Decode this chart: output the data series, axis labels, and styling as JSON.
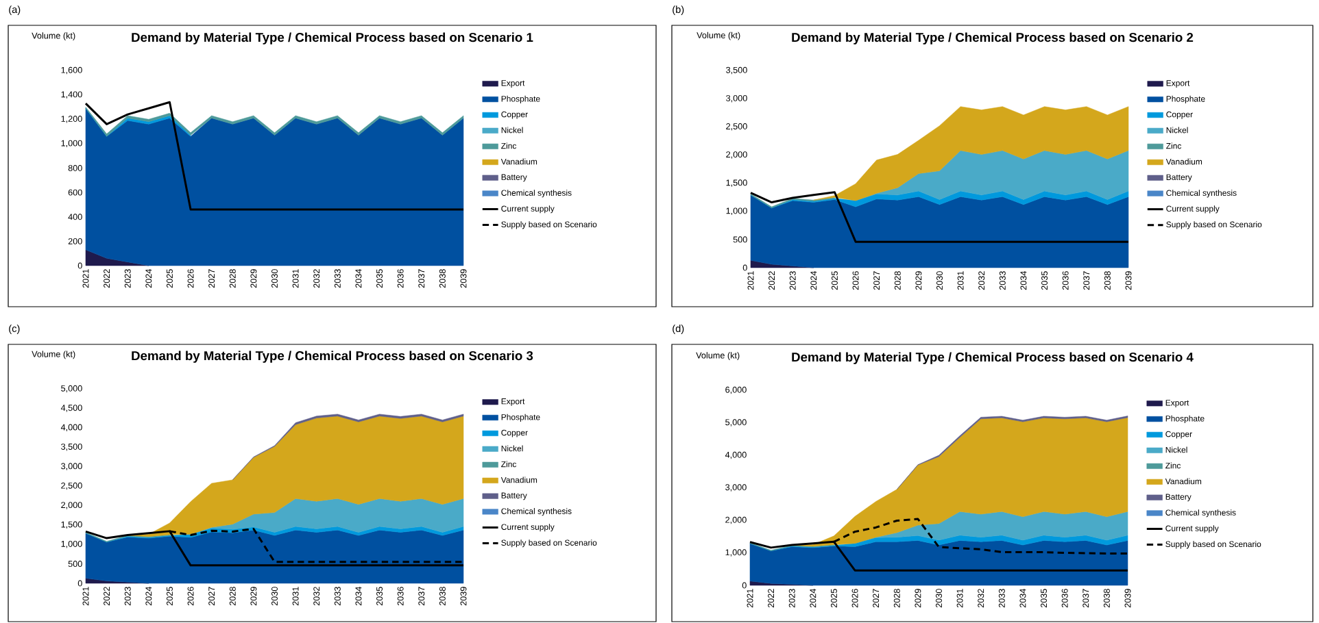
{
  "chart_data": [
    {
      "type": "area",
      "stacked": true,
      "title": "Demand by Material Type / Chemical Process based on Scenario 1",
      "ylabel": "Volume (kt)",
      "annotations": [
        "(a)"
      ],
      "legend": "right",
      "categories": [
        "2021",
        "2022",
        "2023",
        "2024",
        "2025",
        "2026",
        "2027",
        "2028",
        "2029",
        "2030",
        "2031",
        "2032",
        "2033",
        "2034",
        "2035",
        "2036",
        "2037",
        "2038",
        "2039"
      ],
      "ylim": [
        0,
        1600
      ],
      "yticks": [
        0,
        200,
        400,
        600,
        800,
        {
          "value": 1000,
          "label": "1,000"
        },
        {
          "value": 1200,
          "label": "1,200"
        },
        {
          "value": 1400,
          "label": "1,400"
        },
        {
          "value": 1600,
          "label": "1,600"
        }
      ],
      "series": [
        {
          "name": "Export",
          "color": "#1f1a4d",
          "values": [
            130,
            60,
            30,
            0,
            null,
            null,
            null,
            null,
            null,
            null,
            null,
            null,
            null,
            null,
            null,
            null,
            null,
            null,
            null
          ]
        },
        {
          "name": "Phosphate",
          "color": "#0050a0",
          "values": [
            1160,
            1000,
            1160,
            1160,
            1210,
            1060,
            1210,
            1160,
            1210,
            1070,
            1210,
            1160,
            1210,
            1070,
            1210,
            1160,
            1210,
            1070,
            1210
          ]
        },
        {
          "name": "Copper",
          "color": "#0099dd",
          "values": [
            0,
            0,
            20,
            20,
            20,
            10,
            null,
            null,
            null,
            null,
            null,
            null,
            null,
            null,
            null,
            null,
            null,
            null,
            null
          ]
        },
        {
          "name": "Nickel",
          "color": "#4aaac8",
          "values": [
            null,
            null,
            null,
            null,
            null,
            null,
            null,
            null,
            null,
            null,
            null,
            null,
            null,
            null,
            null,
            null,
            null,
            null,
            null
          ]
        },
        {
          "name": "Zinc",
          "color": "#4e9a9a",
          "values": [
            10,
            20,
            20,
            20,
            20,
            20,
            20,
            20,
            20,
            20,
            20,
            20,
            20,
            20,
            20,
            20,
            20,
            20,
            20
          ]
        },
        {
          "name": "Vanadium",
          "color": "#d4a71c",
          "values": [
            null,
            null,
            null,
            null,
            null,
            null,
            null,
            null,
            null,
            null,
            null,
            null,
            null,
            null,
            null,
            null,
            null,
            null,
            null
          ]
        },
        {
          "name": "Battery",
          "color": "#5f5f8a",
          "values": [
            null,
            null,
            null,
            null,
            null,
            null,
            null,
            null,
            null,
            null,
            null,
            null,
            null,
            null,
            null,
            null,
            null,
            null,
            null
          ]
        },
        {
          "name": "Chemical synthesis",
          "color": "#4a86c8",
          "values": [
            null,
            null,
            null,
            null,
            null,
            null,
            null,
            null,
            null,
            null,
            null,
            null,
            null,
            null,
            null,
            null,
            null,
            null,
            null
          ]
        },
        {
          "name": "Current supply",
          "type": "line",
          "line_style": "solid",
          "color": "#000000",
          "values": [
            1330,
            1160,
            1240,
            1290,
            1340,
            460,
            460,
            460,
            460,
            460,
            460,
            460,
            460,
            460,
            460,
            460,
            460,
            460,
            460
          ]
        },
        {
          "name": "Supply based on Scenario",
          "type": "line",
          "line_style": "dashed",
          "color": "#000000",
          "values": [
            null,
            null,
            null,
            null,
            null,
            null,
            null,
            null,
            null,
            null,
            null,
            null,
            null,
            null,
            null,
            null,
            null,
            null,
            null
          ]
        }
      ]
    },
    {
      "type": "area",
      "stacked": true,
      "title": "Demand by Material Type / Chemical Process based on Scenario 2",
      "ylabel": "Volume (kt)",
      "annotations": [
        "(b)"
      ],
      "legend": "right",
      "categories": [
        "2021",
        "2022",
        "2023",
        "2024",
        "2025",
        "2026",
        "2027",
        "2028",
        "2029",
        "2030",
        "2031",
        "2032",
        "2033",
        "2034",
        "2035",
        "2036",
        "2037",
        "2038",
        "2039"
      ],
      "ylim": [
        0,
        3500
      ],
      "yticks": [
        0,
        500,
        {
          "value": 1000,
          "label": "1,000"
        },
        {
          "value": 1500,
          "label": "1,500"
        },
        {
          "value": 2000,
          "label": "2,000"
        },
        {
          "value": 2500,
          "label": "2,500"
        },
        {
          "value": 3000,
          "label": "3,000"
        },
        {
          "value": 3500,
          "label": "3,500"
        }
      ],
      "series": [
        {
          "name": "Export",
          "color": "#1f1a4d",
          "values": [
            130,
            60,
            30,
            0,
            null,
            null,
            null,
            null,
            null,
            null,
            null,
            null,
            null,
            null,
            null,
            null,
            null,
            null,
            null
          ]
        },
        {
          "name": "Phosphate",
          "color": "#0050a0",
          "values": [
            1160,
            1000,
            1160,
            1160,
            1210,
            1080,
            1220,
            1200,
            1260,
            1120,
            1260,
            1200,
            1260,
            1120,
            1260,
            1200,
            1260,
            1120,
            1260
          ]
        },
        {
          "name": "Copper",
          "color": "#0099dd",
          "values": [
            0,
            0,
            20,
            20,
            20,
            110,
            90,
            90,
            100,
            90,
            100,
            90,
            100,
            90,
            100,
            90,
            100,
            90,
            100
          ]
        },
        {
          "name": "Nickel",
          "color": "#4aaac8",
          "values": [
            null,
            null,
            null,
            null,
            null,
            0,
            10,
            130,
            310,
            510,
            720,
            720,
            720,
            720,
            720,
            720,
            720,
            720,
            720
          ]
        },
        {
          "name": "Zinc",
          "color": "#4e9a9a",
          "values": [
            20,
            20,
            20,
            20,
            20,
            null,
            null,
            null,
            null,
            null,
            null,
            null,
            null,
            null,
            null,
            null,
            null,
            null,
            null
          ]
        },
        {
          "name": "Vanadium",
          "color": "#d4a71c",
          "values": [
            null,
            null,
            null,
            0,
            30,
            300,
            590,
            590,
            590,
            800,
            780,
            790,
            780,
            780,
            780,
            790,
            780,
            780,
            780
          ]
        },
        {
          "name": "Battery",
          "color": "#5f5f8a",
          "values": [
            null,
            null,
            null,
            null,
            null,
            null,
            null,
            null,
            null,
            null,
            null,
            null,
            null,
            null,
            null,
            null,
            null,
            null,
            null
          ]
        },
        {
          "name": "Chemical synthesis",
          "color": "#4a86c8",
          "values": [
            null,
            null,
            null,
            null,
            null,
            null,
            null,
            null,
            null,
            null,
            null,
            null,
            null,
            null,
            null,
            null,
            null,
            null,
            null
          ]
        },
        {
          "name": "Current supply",
          "type": "line",
          "line_style": "solid",
          "color": "#000000",
          "values": [
            1330,
            1160,
            1240,
            1290,
            1340,
            460,
            460,
            460,
            460,
            460,
            460,
            460,
            460,
            460,
            460,
            460,
            460,
            460,
            460
          ]
        },
        {
          "name": "Supply based on Scenario",
          "type": "line",
          "line_style": "dashed",
          "color": "#000000",
          "values": [
            null,
            null,
            null,
            null,
            null,
            null,
            null,
            null,
            null,
            null,
            null,
            null,
            null,
            null,
            null,
            null,
            null,
            null,
            null
          ]
        }
      ]
    },
    {
      "type": "area",
      "stacked": true,
      "title": "Demand by Material Type / Chemical Process based on Scenario 3",
      "ylabel": "Volume (kt)",
      "annotations": [
        "(c)"
      ],
      "legend": "right",
      "categories": [
        "2021",
        "2022",
        "2023",
        "2024",
        "2025",
        "2026",
        "2027",
        "2028",
        "2029",
        "2030",
        "2031",
        "2032",
        "2033",
        "2034",
        "2035",
        "2036",
        "2037",
        "2038",
        "2039"
      ],
      "ylim": [
        0,
        5000
      ],
      "yticks": [
        0,
        500,
        {
          "value": 1000,
          "label": "1,000"
        },
        {
          "value": 1500,
          "label": "1,500"
        },
        {
          "value": 2000,
          "label": "2,000"
        },
        {
          "value": 2500,
          "label": "2,500"
        },
        {
          "value": 3000,
          "label": "3,000"
        },
        {
          "value": 3500,
          "label": "3,500"
        },
        {
          "value": 4000,
          "label": "4,000"
        },
        {
          "value": 4500,
          "label": "4,500"
        },
        {
          "value": 5000,
          "label": "5,000"
        }
      ],
      "series": [
        {
          "name": "Export",
          "color": "#1f1a4d",
          "values": [
            130,
            60,
            30,
            0,
            null,
            null,
            null,
            null,
            null,
            null,
            null,
            null,
            null,
            null,
            null,
            null,
            null,
            null,
            null
          ]
        },
        {
          "name": "Phosphate",
          "color": "#0050a0",
          "values": [
            1160,
            1000,
            1160,
            1160,
            1210,
            1180,
            1320,
            1300,
            1370,
            1230,
            1370,
            1310,
            1370,
            1230,
            1370,
            1310,
            1370,
            1230,
            1370
          ]
        },
        {
          "name": "Copper",
          "color": "#0099dd",
          "values": [
            0,
            0,
            20,
            20,
            20,
            80,
            100,
            90,
            80,
            80,
            90,
            90,
            90,
            80,
            90,
            90,
            90,
            80,
            90
          ]
        },
        {
          "name": "Nickel",
          "color": "#4aaac8",
          "values": [
            null,
            null,
            null,
            null,
            null,
            0,
            20,
            130,
            330,
            510,
            720,
            710,
            720,
            720,
            720,
            710,
            720,
            720,
            720
          ]
        },
        {
          "name": "Zinc",
          "color": "#4e9a9a",
          "values": [
            20,
            20,
            20,
            20,
            20,
            null,
            null,
            null,
            null,
            null,
            null,
            null,
            null,
            null,
            null,
            null,
            null,
            null,
            null
          ]
        },
        {
          "name": "Vanadium",
          "color": "#d4a71c",
          "values": [
            null,
            null,
            0,
            60,
            300,
            840,
            1130,
            1140,
            1460,
            1700,
            1900,
            2140,
            2120,
            2120,
            2120,
            2130,
            2120,
            2120,
            2120
          ]
        },
        {
          "name": "Battery",
          "color": "#5f5f8a",
          "values": [
            null,
            null,
            null,
            null,
            null,
            null,
            null,
            0,
            10,
            20,
            50,
            50,
            50,
            50,
            50,
            50,
            50,
            50,
            50
          ]
        },
        {
          "name": "Chemical synthesis",
          "color": "#4a86c8",
          "values": [
            null,
            null,
            null,
            null,
            null,
            null,
            null,
            null,
            null,
            null,
            null,
            null,
            null,
            null,
            null,
            null,
            null,
            null,
            null
          ]
        },
        {
          "name": "Current supply",
          "type": "line",
          "line_style": "solid",
          "color": "#000000",
          "values": [
            1330,
            1160,
            1240,
            1290,
            1340,
            460,
            460,
            460,
            460,
            460,
            460,
            460,
            460,
            460,
            460,
            460,
            460,
            460,
            460
          ]
        },
        {
          "name": "Supply based on Scenario",
          "type": "line",
          "line_style": "dashed",
          "color": "#000000",
          "values": [
            null,
            null,
            null,
            null,
            1340,
            1240,
            1350,
            1330,
            1400,
            550,
            550,
            550,
            550,
            550,
            550,
            550,
            550,
            550,
            550
          ]
        }
      ]
    },
    {
      "type": "area",
      "stacked": true,
      "title": "Demand by Material Type / Chemical Process based on Scenario 4",
      "ylabel": "Volume (kt)",
      "annotations": [
        "(d)"
      ],
      "legend": "right",
      "categories": [
        "2021",
        "2022",
        "2023",
        "2024",
        "2025",
        "2026",
        "2027",
        "2028",
        "2029",
        "2030",
        "2031",
        "2032",
        "2033",
        "2034",
        "2035",
        "2036",
        "2037",
        "2038",
        "2039"
      ],
      "ylim": [
        0,
        6000
      ],
      "yticks": [
        0,
        {
          "value": 1000,
          "label": "1,000"
        },
        {
          "value": 2000,
          "label": "2,000"
        },
        {
          "value": 3000,
          "label": "3,000"
        },
        {
          "value": 4000,
          "label": "4,000"
        },
        {
          "value": 5000,
          "label": "5,000"
        },
        {
          "value": 6000,
          "label": "6,000"
        }
      ],
      "series": [
        {
          "name": "Export",
          "color": "#1f1a4d",
          "values": [
            130,
            60,
            30,
            0,
            null,
            null,
            null,
            null,
            null,
            null,
            null,
            null,
            null,
            null,
            null,
            null,
            null,
            null,
            null
          ]
        },
        {
          "name": "Phosphate",
          "color": "#0050a0",
          "values": [
            1160,
            1000,
            1160,
            1160,
            1210,
            1190,
            1340,
            1340,
            1380,
            1240,
            1380,
            1340,
            1380,
            1240,
            1380,
            1340,
            1380,
            1240,
            1380
          ]
        },
        {
          "name": "Copper",
          "color": "#0099dd",
          "values": [
            0,
            0,
            20,
            20,
            20,
            100,
            130,
            140,
            150,
            150,
            160,
            140,
            160,
            150,
            160,
            140,
            160,
            150,
            160
          ]
        },
        {
          "name": "Nickel",
          "color": "#4aaac8",
          "values": [
            null,
            null,
            null,
            null,
            null,
            0,
            10,
            140,
            320,
            510,
            730,
            710,
            730,
            720,
            730,
            710,
            730,
            720,
            730
          ]
        },
        {
          "name": "Zinc",
          "color": "#4e9a9a",
          "values": [
            20,
            20,
            20,
            20,
            20,
            null,
            null,
            null,
            null,
            null,
            null,
            null,
            null,
            null,
            null,
            null,
            null,
            null,
            null
          ]
        },
        {
          "name": "Vanadium",
          "color": "#d4a71c",
          "values": [
            null,
            null,
            0,
            50,
            270,
            830,
            1100,
            1330,
            1850,
            2060,
            2280,
            2930,
            2880,
            2920,
            2880,
            2930,
            2880,
            2920,
            2890
          ]
        },
        {
          "name": "Battery",
          "color": "#5f5f8a",
          "values": [
            null,
            null,
            null,
            null,
            null,
            null,
            null,
            0,
            10,
            40,
            50,
            50,
            50,
            50,
            50,
            50,
            50,
            50,
            50
          ]
        },
        {
          "name": "Chemical synthesis",
          "color": "#4a86c8",
          "values": [
            null,
            null,
            null,
            null,
            null,
            null,
            null,
            null,
            null,
            null,
            null,
            null,
            null,
            null,
            null,
            null,
            null,
            null,
            null
          ]
        },
        {
          "name": "Current supply",
          "type": "line",
          "line_style": "solid",
          "color": "#000000",
          "values": [
            1330,
            1160,
            1240,
            1290,
            1340,
            460,
            460,
            460,
            460,
            460,
            460,
            460,
            460,
            460,
            460,
            460,
            460,
            460,
            460
          ]
        },
        {
          "name": "Supply based on Scenario",
          "type": "line",
          "line_style": "dashed",
          "color": "#000000",
          "values": [
            null,
            null,
            null,
            null,
            1340,
            1650,
            1780,
            1990,
            2040,
            1180,
            1140,
            1110,
            1020,
            1020,
            1020,
            1000,
            990,
            980,
            980
          ]
        }
      ]
    }
  ]
}
